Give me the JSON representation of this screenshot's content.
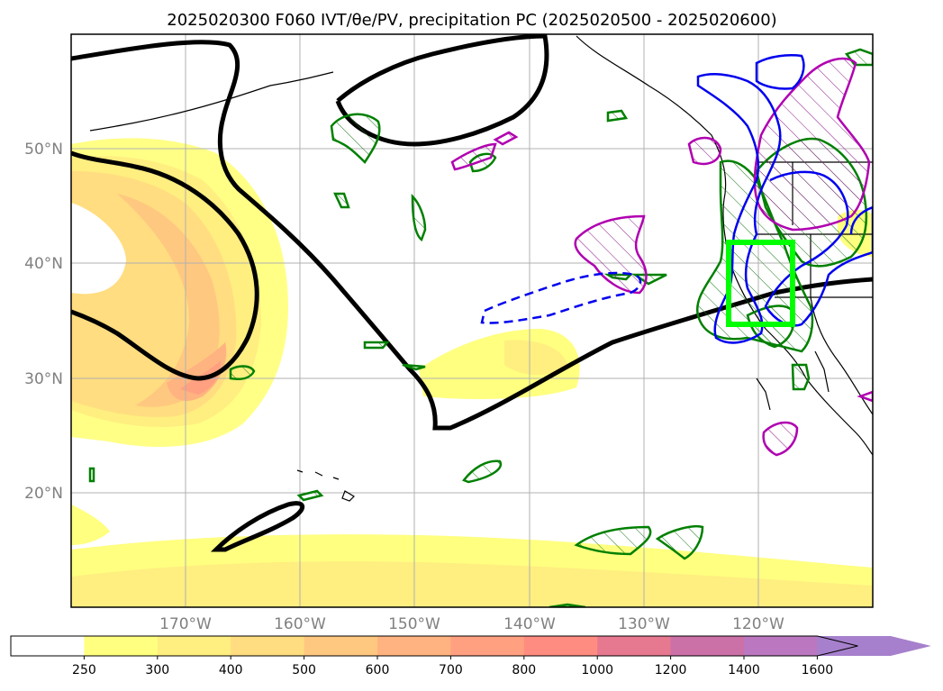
{
  "title": "2025020300 F060 IVT/θe/PV, precipitation PC (2025020500 - 2025020600)",
  "map": {
    "lon_range": [
      -180,
      -110
    ],
    "lat_range": [
      10,
      60
    ],
    "gridlines": true,
    "x_ticks": [
      "170°W",
      "160°W",
      "150°W",
      "140°W",
      "130°W",
      "120°W"
    ],
    "y_ticks": [
      "20°N",
      "30°N",
      "40°N",
      "50°N"
    ],
    "highlight_box": {
      "color": "#00ff00",
      "lon": [
        -122.5,
        -117
      ],
      "lat": [
        34.7,
        42
      ]
    }
  },
  "colorbar": {
    "levels": [
      "250",
      "300",
      "400",
      "500",
      "600",
      "700",
      "800",
      "1000",
      "1200",
      "1400",
      "1600"
    ],
    "colors": [
      "#ffff80",
      "#ffee80",
      "#ffdd80",
      "#ffc880",
      "#ffb380",
      "#ffa080",
      "#ff8c80",
      "#e67890",
      "#cc70a8",
      "#bb78c0",
      "#a680cc"
    ],
    "extend": "max"
  }
}
